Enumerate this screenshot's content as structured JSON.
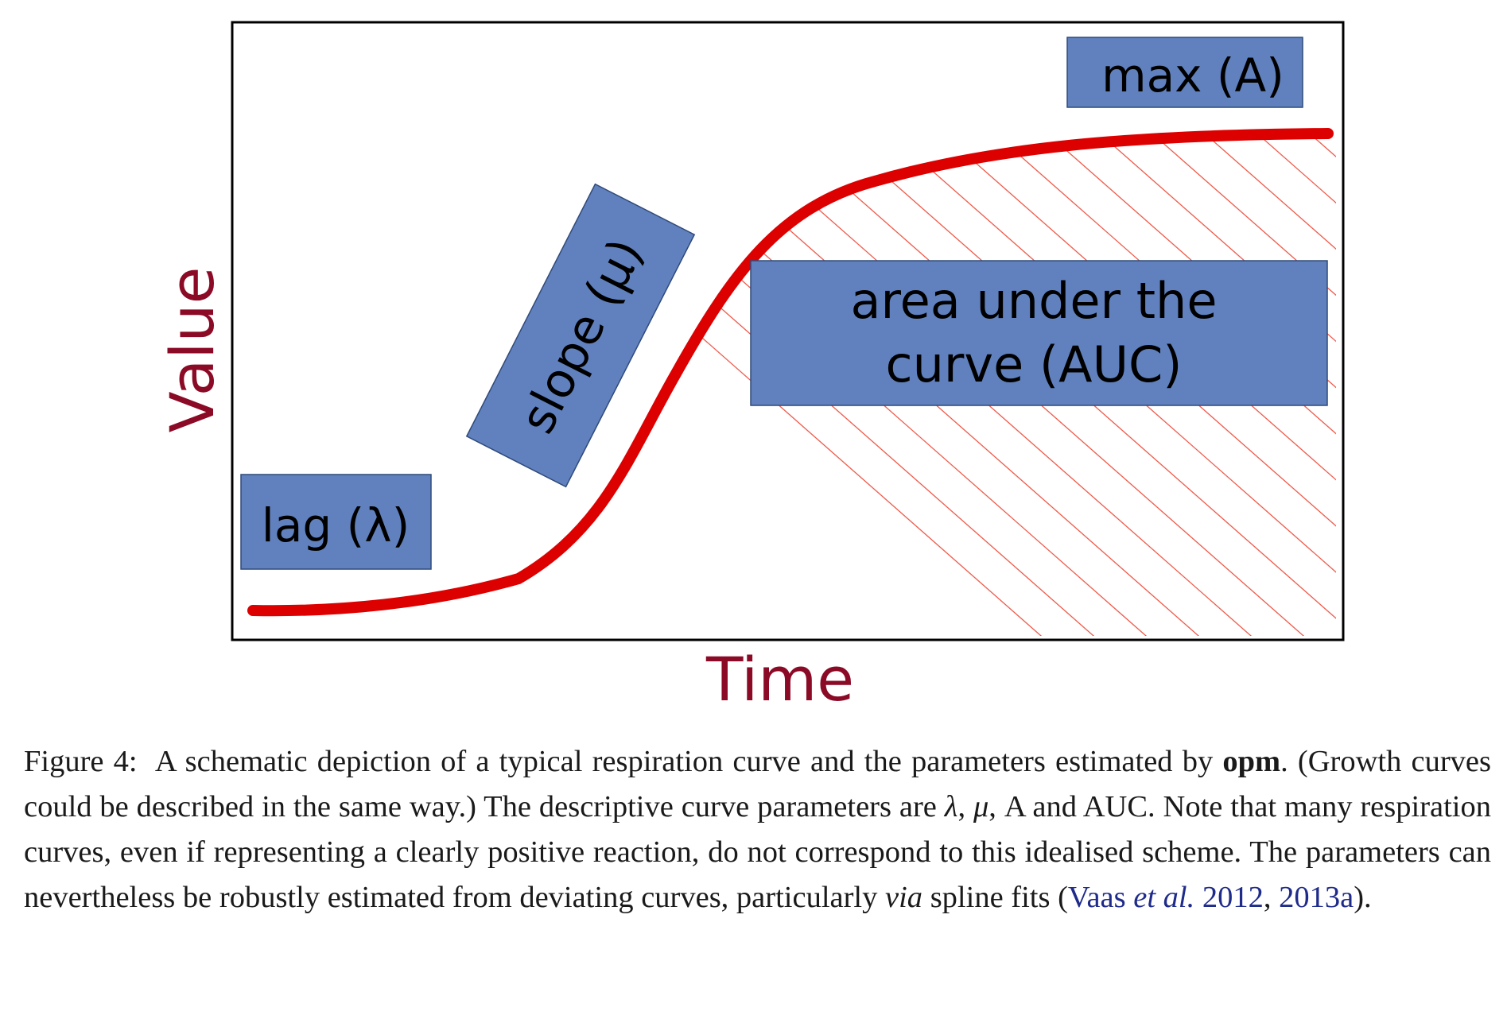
{
  "diagram": {
    "x_label": "Time",
    "y_label": "Value",
    "boxes": {
      "lag": "lag (λ)",
      "slope": "slope (μ)",
      "max": "max (A)",
      "auc_line1": "area under the",
      "auc_line2": "curve (AUC)"
    },
    "colors": {
      "curve": "#dd0000",
      "hatch": "#ef5a4a",
      "box_fill": "#6081be",
      "axis_label": "#8b0a26",
      "frame": "#000000"
    }
  },
  "caption": {
    "figure_label": "Figure 4:",
    "t1": "A schematic depiction of a typical respiration curve and the parameters estimated by ",
    "pkg": "opm",
    "t2": ".  (Growth curves could be described in the same way.)  The descriptive curve parameters are ",
    "sym_lambda": "λ",
    "sep1": ", ",
    "sym_mu": "μ",
    "t3": ", A and AUC.  Note that many respiration curves, even if representing a clearly positive reaction, do not correspond to this idealised scheme.  The parameters can nevertheless be robustly estimated from deviating curves, particularly ",
    "via": "via",
    "t4": " spline fits (",
    "ref_author": "Vaas ",
    "ref_etal": "et al.",
    "ref_year1": " 2012",
    "ref_sep": ", ",
    "ref_year2": "2013a",
    "t5": ")."
  }
}
